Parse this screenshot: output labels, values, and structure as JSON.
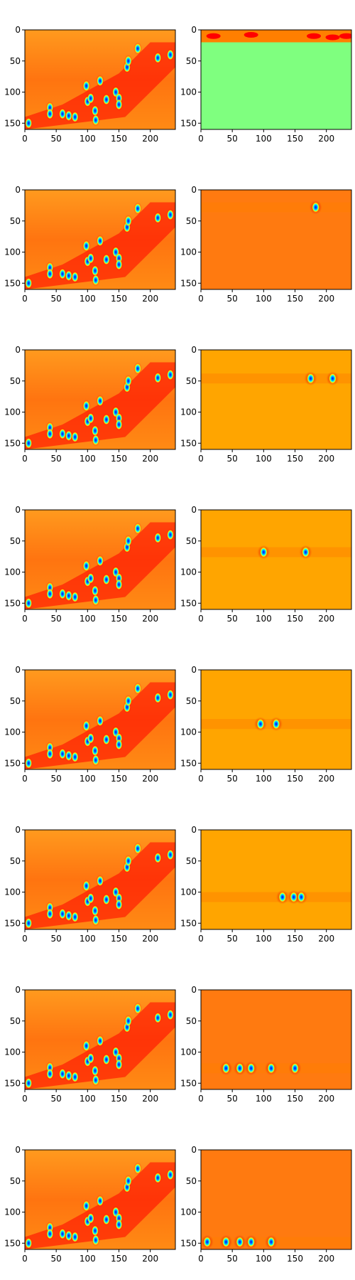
{
  "figure": {
    "rows": 8,
    "cols": 2
  },
  "colormap": {
    "name": "jet",
    "stops": [
      "#00007f",
      "#0000ff",
      "#007fff",
      "#00ffff",
      "#7fff7f",
      "#ffff00",
      "#ff7f00",
      "#ff0000",
      "#7f0000"
    ]
  },
  "chart_data": {
    "type": "heatmap",
    "description_units": "pixel rows (y) by pixel columns (x)",
    "xlim": [
      0,
      240
    ],
    "ylim": [
      160,
      0
    ],
    "x_ticks": [
      0,
      50,
      100,
      150,
      200
    ],
    "y_ticks": [
      0,
      50,
      100,
      150
    ],
    "x_tick_labels": [
      "0",
      "50",
      "100",
      "150",
      "200"
    ],
    "y_tick_labels": [
      "0",
      "50",
      "100",
      "150"
    ],
    "grid": false,
    "panels": [
      {
        "row": 0,
        "col": 0,
        "kind": "map"
      },
      {
        "row": 0,
        "col": 1,
        "kind": "top_band",
        "band_y": 10
      },
      {
        "row": 1,
        "col": 0,
        "kind": "map"
      },
      {
        "row": 1,
        "col": 1,
        "kind": "band",
        "band_y": 28,
        "spots_x": [
          183
        ]
      },
      {
        "row": 2,
        "col": 0,
        "kind": "map"
      },
      {
        "row": 2,
        "col": 1,
        "kind": "band",
        "band_y": 46,
        "spots_x": [
          175,
          210
        ]
      },
      {
        "row": 3,
        "col": 0,
        "kind": "map"
      },
      {
        "row": 3,
        "col": 1,
        "kind": "band",
        "band_y": 68,
        "spots_x": [
          167,
          100
        ]
      },
      {
        "row": 4,
        "col": 0,
        "kind": "map"
      },
      {
        "row": 4,
        "col": 1,
        "kind": "band",
        "band_y": 87,
        "spots_x": [
          95,
          120
        ]
      },
      {
        "row": 5,
        "col": 0,
        "kind": "map"
      },
      {
        "row": 5,
        "col": 1,
        "kind": "band",
        "band_y": 108,
        "spots_x": [
          130,
          148,
          160
        ]
      },
      {
        "row": 6,
        "col": 0,
        "kind": "map"
      },
      {
        "row": 6,
        "col": 1,
        "kind": "band",
        "band_y": 126,
        "spots_x": [
          40,
          62,
          80,
          112,
          150
        ]
      },
      {
        "row": 7,
        "col": 0,
        "kind": "map"
      },
      {
        "row": 7,
        "col": 1,
        "kind": "band",
        "band_y": 148,
        "spots_x": [
          10,
          40,
          62,
          80,
          112
        ]
      }
    ],
    "blob_spots": [
      [
        6,
        150
      ],
      [
        40,
        125
      ],
      [
        40,
        135
      ],
      [
        60,
        135
      ],
      [
        70,
        138
      ],
      [
        80,
        140
      ],
      [
        100,
        115
      ],
      [
        98,
        90
      ],
      [
        105,
        110
      ],
      [
        112,
        130
      ],
      [
        113,
        145
      ],
      [
        120,
        82
      ],
      [
        130,
        112
      ],
      [
        145,
        100
      ],
      [
        150,
        110
      ],
      [
        150,
        120
      ],
      [
        163,
        60
      ],
      [
        165,
        50
      ],
      [
        180,
        30
      ],
      [
        212,
        45
      ],
      [
        232,
        40
      ]
    ]
  }
}
